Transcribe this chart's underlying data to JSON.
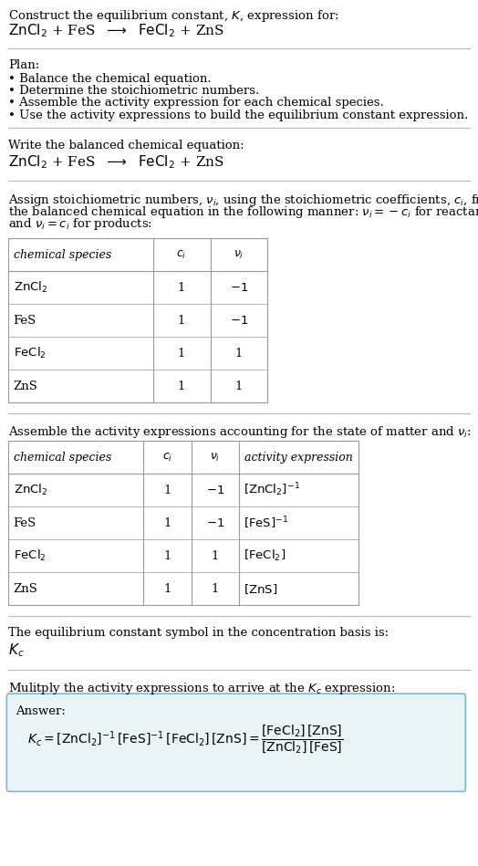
{
  "title_line1": "Construct the equilibrium constant, $K$, expression for:",
  "title_line2": "$\\mathrm{ZnCl_2}$ + FeS  $\\longrightarrow$  $\\mathrm{FeCl_2}$ + ZnS",
  "plan_header": "Plan:",
  "plan_items": [
    "• Balance the chemical equation.",
    "• Determine the stoichiometric numbers.",
    "• Assemble the activity expression for each chemical species.",
    "• Use the activity expressions to build the equilibrium constant expression."
  ],
  "section2_header": "Write the balanced chemical equation:",
  "section2_eq": "$\\mathrm{ZnCl_2}$ + FeS  $\\longrightarrow$  $\\mathrm{FeCl_2}$ + ZnS",
  "section3_intro_lines": [
    "Assign stoichiometric numbers, $\\nu_i$, using the stoichiometric coefficients, $c_i$, from",
    "the balanced chemical equation in the following manner: $\\nu_i = -c_i$ for reactants",
    "and $\\nu_i = c_i$ for products:"
  ],
  "table1_headers": [
    "chemical species",
    "$c_i$",
    "$\\nu_i$"
  ],
  "table1_rows": [
    [
      "$\\mathrm{ZnCl_2}$",
      "1",
      "$-1$"
    ],
    [
      "FeS",
      "1",
      "$-1$"
    ],
    [
      "$\\mathrm{FeCl_2}$",
      "1",
      "1"
    ],
    [
      "ZnS",
      "1",
      "1"
    ]
  ],
  "section4_intro": "Assemble the activity expressions accounting for the state of matter and $\\nu_i$:",
  "table2_headers": [
    "chemical species",
    "$c_i$",
    "$\\nu_i$",
    "activity expression"
  ],
  "table2_rows": [
    [
      "$\\mathrm{ZnCl_2}$",
      "1",
      "$-1$",
      "$[\\mathrm{ZnCl_2}]^{-1}$"
    ],
    [
      "FeS",
      "1",
      "$-1$",
      "$[\\mathrm{FeS}]^{-1}$"
    ],
    [
      "$\\mathrm{FeCl_2}$",
      "1",
      "1",
      "$[\\mathrm{FeCl_2}]$"
    ],
    [
      "ZnS",
      "1",
      "1",
      "$[\\mathrm{ZnS}]$"
    ]
  ],
  "section5_line1": "The equilibrium constant symbol in the concentration basis is:",
  "section5_line2": "$K_c$",
  "section6_intro": "Mulitply the activity expressions to arrive at the $K_c$ expression:",
  "answer_box_color": "#e8f4f8",
  "answer_box_border": "#7ab8d4",
  "answer_label": "Answer:",
  "bg_color": "#ffffff",
  "text_color": "#000000",
  "table_border_color": "#999999",
  "sep_color": "#bbbbbb",
  "font_size": 9.5
}
